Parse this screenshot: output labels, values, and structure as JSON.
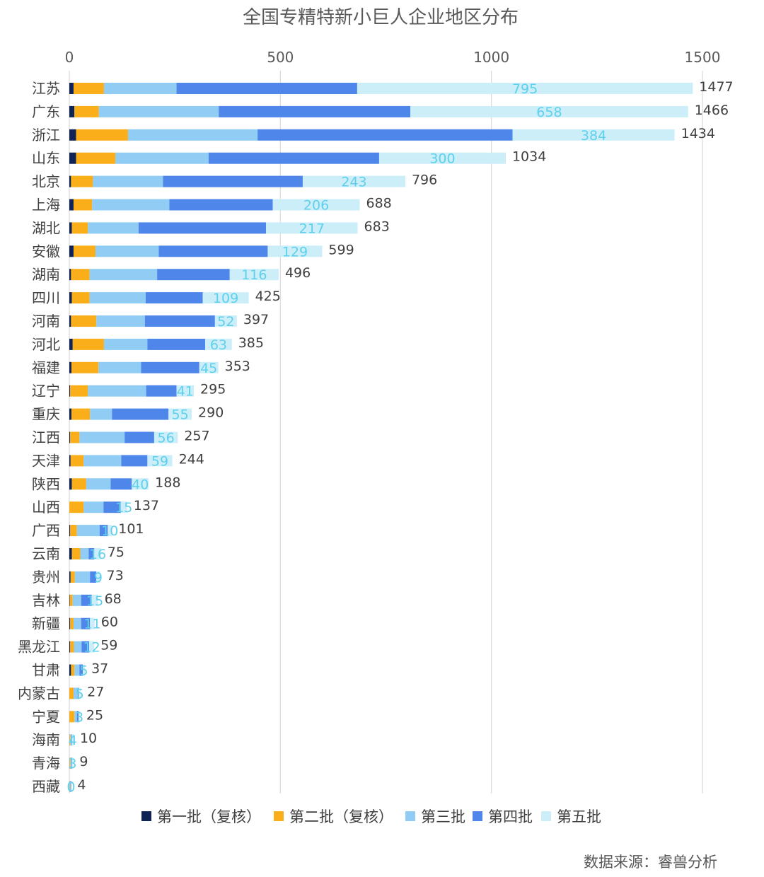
{
  "source_note": "数据来源：睿兽分析",
  "chart_data": {
    "type": "bar",
    "orientation": "horizontal",
    "stacked": true,
    "title": "全国专精特新小巨人企业地区分布",
    "xlim": [
      0,
      1500
    ],
    "xticks": [
      0,
      500,
      1000,
      1500
    ],
    "grid": true,
    "legend_position": "bottom",
    "categories": [
      "江苏",
      "广东",
      "浙江",
      "山东",
      "北京",
      "上海",
      "湖北",
      "安徽",
      "湖南",
      "四川",
      "河南",
      "河北",
      "福建",
      "辽宁",
      "重庆",
      "江西",
      "天津",
      "陕西",
      "山西",
      "广西",
      "云南",
      "贵州",
      "吉林",
      "新疆",
      "黑龙江",
      "甘肃",
      "内蒙古",
      "宁夏",
      "海南",
      "青海",
      "西藏"
    ],
    "series": [
      {
        "name": "第一批（复核）",
        "color": "#0f2454",
        "values": [
          10,
          12,
          16,
          16,
          4,
          10,
          6,
          10,
          4,
          6,
          4,
          8,
          5,
          2,
          5,
          2,
          3,
          6,
          0,
          2,
          6,
          3,
          1,
          2,
          2,
          4,
          0,
          0,
          0,
          0,
          0
        ]
      },
      {
        "name": "第二批（复核）",
        "color": "#f9ae1a",
        "values": [
          72,
          58,
          123,
          93,
          52,
          44,
          38,
          52,
          44,
          42,
          60,
          74,
          64,
          42,
          44,
          22,
          31,
          34,
          34,
          16,
          20,
          10,
          7,
          8,
          9,
          8,
          10,
          12,
          2,
          2,
          1
        ]
      },
      {
        "name": "第三批",
        "color": "#90ccf4",
        "values": [
          172,
          284,
          307,
          221,
          166,
          183,
          120,
          150,
          160,
          133,
          115,
          103,
          101,
          138,
          52,
          107,
          89,
          58,
          47,
          54,
          20,
          36,
          20,
          18,
          18,
          12,
          10,
          6,
          3,
          3,
          2
        ]
      },
      {
        "name": "第四批",
        "color": "#4f86ea",
        "values": [
          428,
          454,
          604,
          404,
          331,
          245,
          302,
          258,
          172,
          135,
          166,
          137,
          138,
          72,
          134,
          70,
          62,
          50,
          41,
          19,
          13,
          15,
          25,
          21,
          18,
          8,
          2,
          4,
          1,
          1,
          1
        ]
      },
      {
        "name": "第五批",
        "color": "#cbeef9",
        "values": [
          795,
          658,
          384,
          300,
          243,
          206,
          217,
          129,
          116,
          109,
          52,
          63,
          45,
          41,
          55,
          56,
          59,
          40,
          15,
          10,
          16,
          9,
          15,
          11,
          12,
          5,
          5,
          3,
          4,
          3,
          0
        ]
      }
    ],
    "labeled_series": "第五批",
    "totals": [
      1477,
      1466,
      1434,
      1034,
      796,
      688,
      683,
      599,
      496,
      425,
      397,
      385,
      353,
      295,
      290,
      257,
      244,
      188,
      137,
      101,
      75,
      73,
      68,
      60,
      59,
      37,
      27,
      25,
      10,
      9,
      4
    ]
  }
}
